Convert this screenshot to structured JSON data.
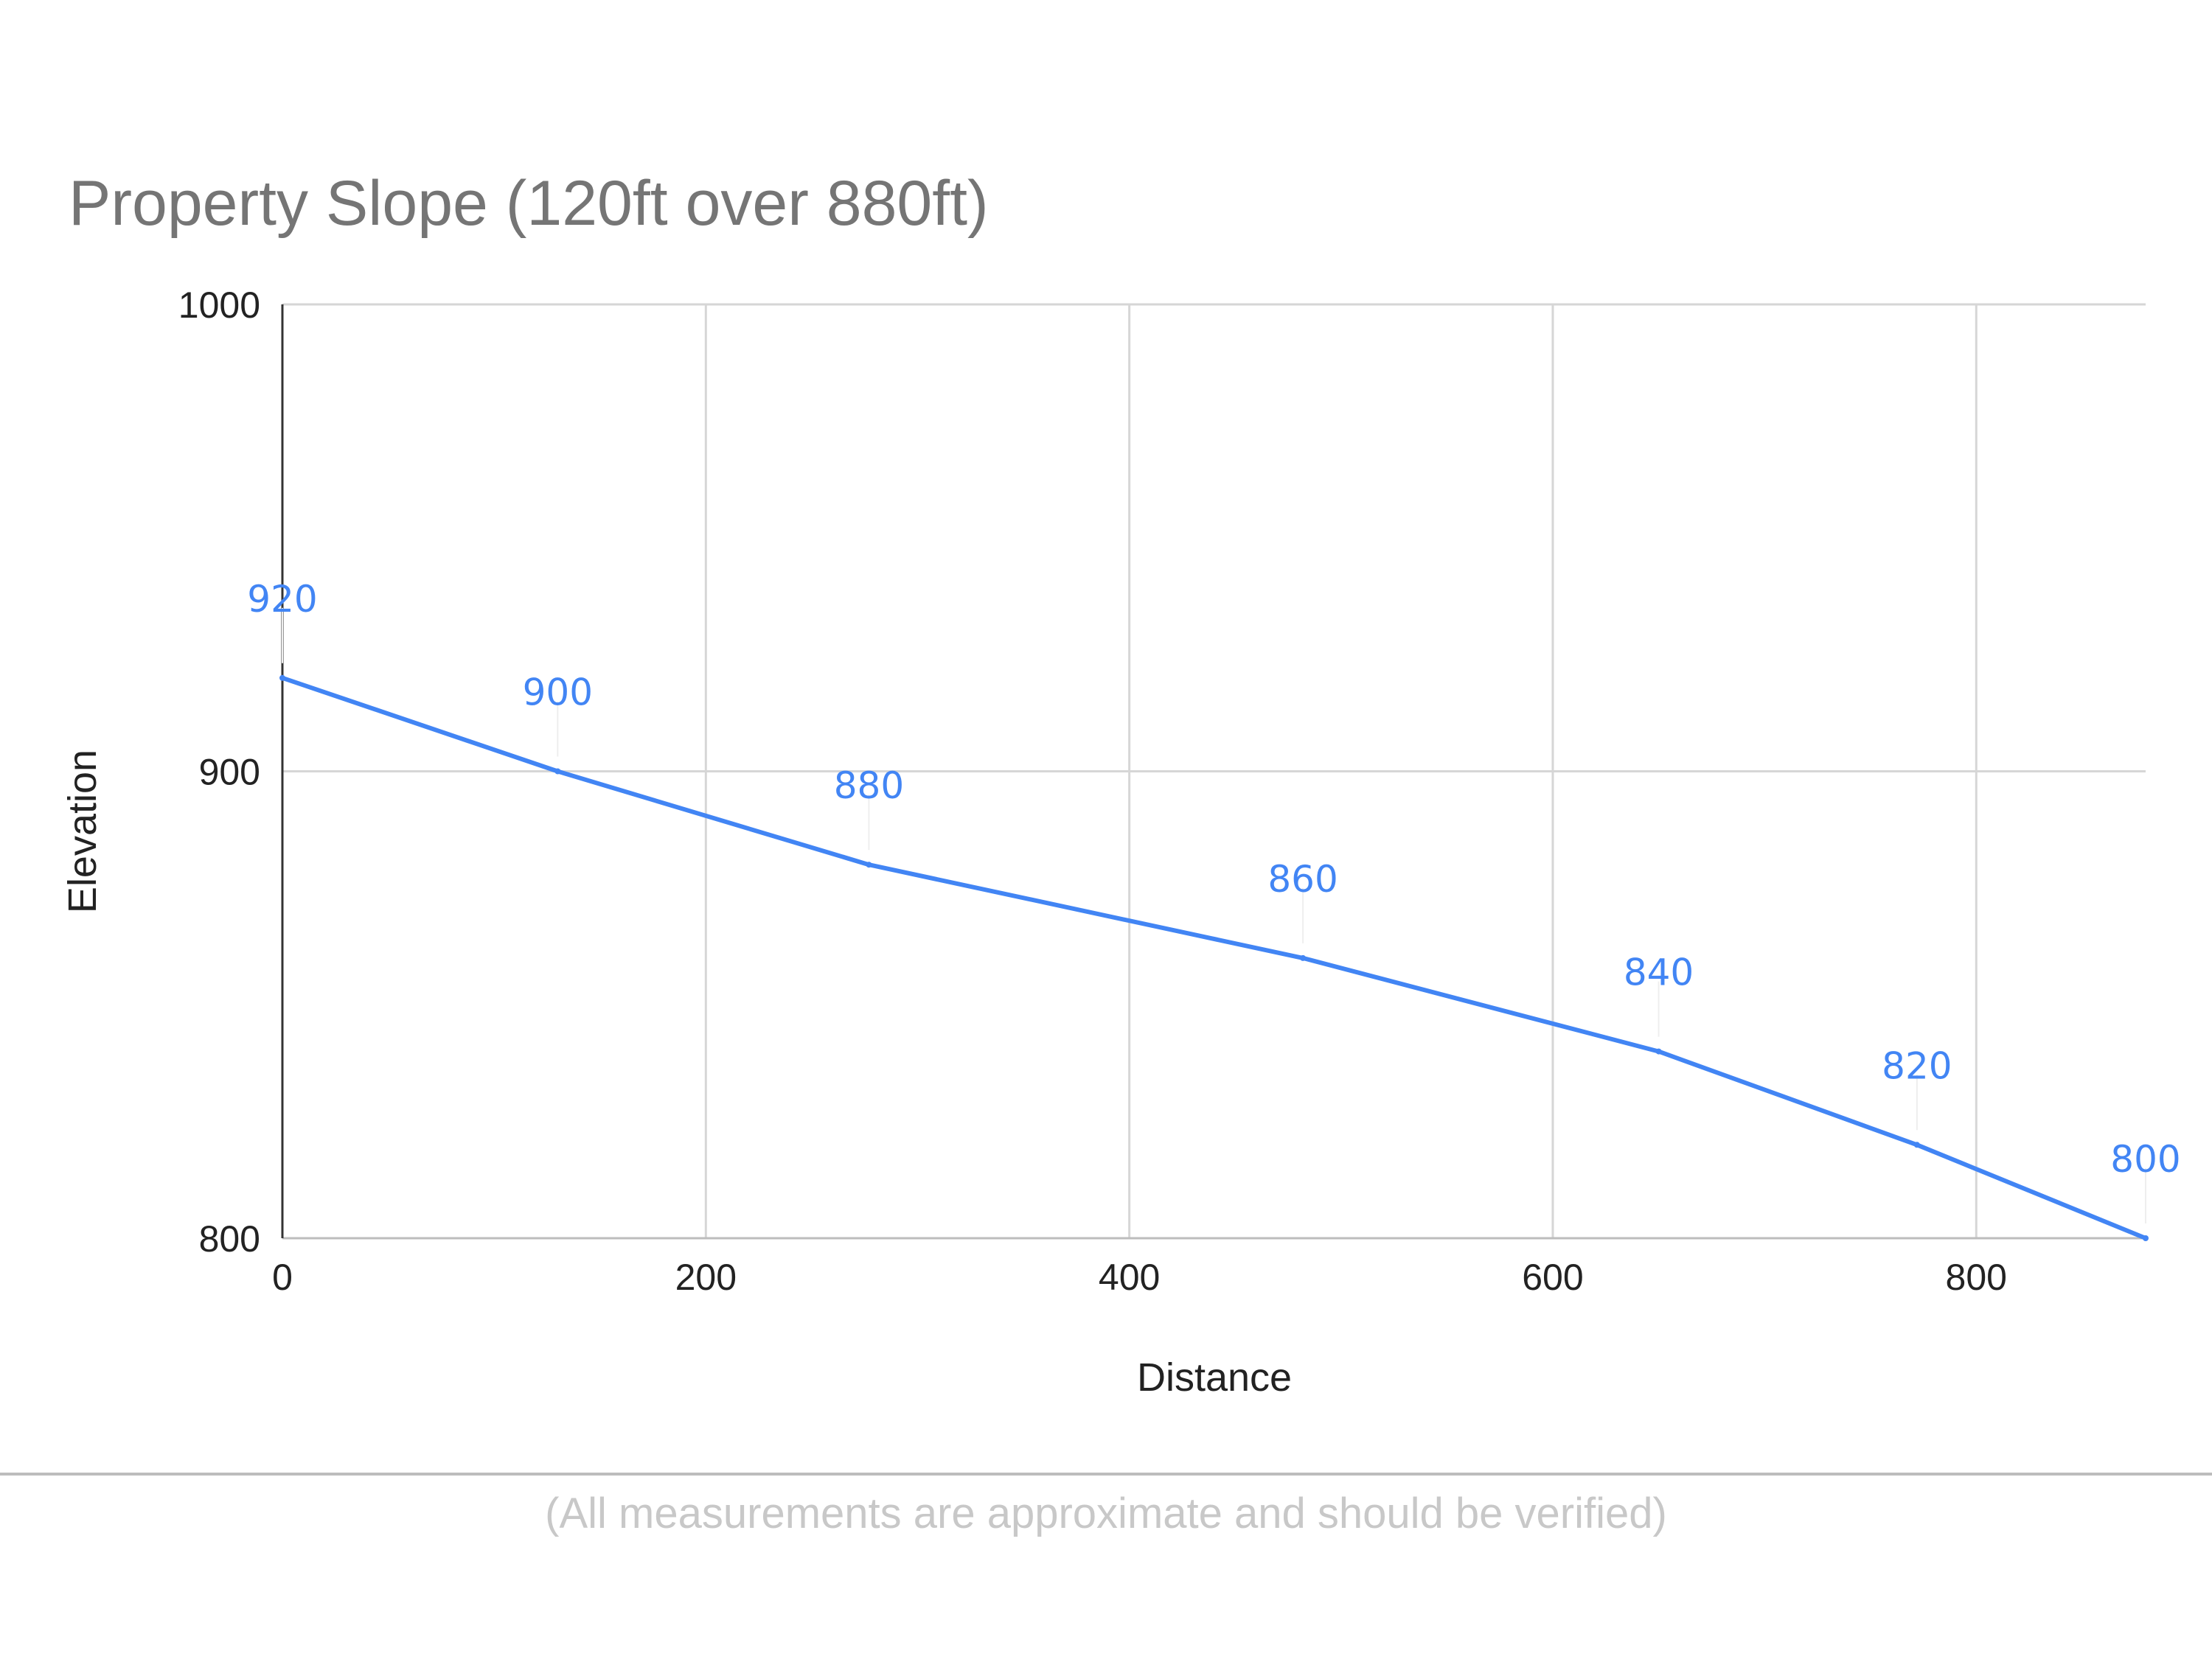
{
  "chart_data": {
    "type": "line",
    "title": "Property Slope (120ft over 880ft)",
    "xlabel": "Distance",
    "ylabel": "Elevation",
    "xlim": [
      0,
      880
    ],
    "ylim": [
      800,
      1000
    ],
    "x_ticks": [
      0,
      200,
      400,
      600,
      800
    ],
    "y_ticks": [
      800,
      900,
      1000
    ],
    "grid": true,
    "legend": "none",
    "series": [
      {
        "x": [
          0,
          130,
          277,
          482,
          650,
          772,
          880
        ],
        "y": [
          920,
          900,
          880,
          860,
          840,
          820,
          800
        ],
        "data_labels": [
          "920",
          "900",
          "880",
          "860",
          "840",
          "820",
          "800"
        ],
        "color": "#4285f4"
      }
    ]
  },
  "note": "(All measurements are approximate and should be verified)"
}
